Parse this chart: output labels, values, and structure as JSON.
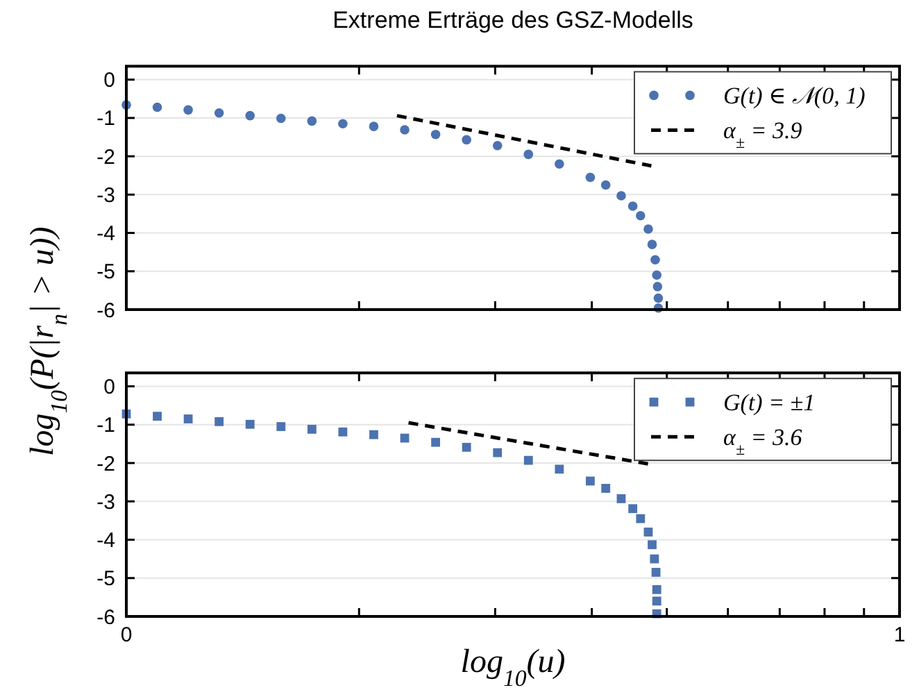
{
  "chart_data": [
    {
      "type": "scatter",
      "title": "Extreme Erträge des GSZ-Modells",
      "ylabel": "log$_{10}$(P(|r$_{n}$| > u))",
      "xlim": [
        0,
        1
      ],
      "xticks": [
        {
          "value": 0,
          "label": null
        },
        {
          "value": 0.301,
          "label": null
        },
        {
          "value": 0.477,
          "label": null
        },
        {
          "value": 0.602,
          "label": null
        },
        {
          "value": 0.699,
          "label": null
        },
        {
          "value": 0.778,
          "label": null
        },
        {
          "value": 0.845,
          "label": null
        },
        {
          "value": 0.903,
          "label": null
        },
        {
          "value": 0.954,
          "label": null
        },
        {
          "value": 1,
          "label": null
        }
      ],
      "ylim": [
        -6,
        0.35
      ],
      "yticks": [
        0,
        -1,
        -2,
        -3,
        -4,
        -5,
        -6
      ],
      "grid": "y",
      "legend": "top right",
      "tick_labels": "y",
      "series": [
        {
          "name": "G(t) ∈ 𝒩(0, 1)",
          "type": "scatter",
          "marker": "circle",
          "color": "#4c72b0",
          "x": [
            0,
            0.04,
            0.08,
            0.12,
            0.16,
            0.2,
            0.24,
            0.28,
            0.32,
            0.36,
            0.4,
            0.44,
            0.48,
            0.52,
            0.56,
            0.6,
            0.62,
            0.64,
            0.655,
            0.665,
            0.675,
            0.68,
            0.684,
            0.686,
            0.687,
            0.688,
            0.688
          ],
          "values": [
            -0.66,
            -0.72,
            -0.79,
            -0.87,
            -0.94,
            -1.01,
            -1.08,
            -1.15,
            -1.22,
            -1.31,
            -1.43,
            -1.57,
            -1.72,
            -1.95,
            -2.2,
            -2.55,
            -2.75,
            -3.03,
            -3.3,
            -3.55,
            -3.9,
            -4.3,
            -4.7,
            -5.1,
            -5.4,
            -5.7,
            -5.96
          ]
        },
        {
          "name": "α$_{±}$ = 3.9",
          "type": "line",
          "line_style": "dashed",
          "color": "#000000",
          "x": [
            0.35,
            0.679
          ],
          "values": [
            -0.94,
            -2.25
          ]
        }
      ]
    },
    {
      "type": "scatter",
      "xlabel": "log$_{10}$(u)",
      "xlim": [
        0,
        1
      ],
      "xticks": [
        {
          "value": 0,
          "label": "0"
        },
        {
          "value": 0.301,
          "label": null
        },
        {
          "value": 0.477,
          "label": null
        },
        {
          "value": 0.602,
          "label": null
        },
        {
          "value": 0.699,
          "label": null
        },
        {
          "value": 0.778,
          "label": null
        },
        {
          "value": 0.845,
          "label": null
        },
        {
          "value": 0.903,
          "label": null
        },
        {
          "value": 0.954,
          "label": null
        },
        {
          "value": 1,
          "label": "1"
        }
      ],
      "ylim": [
        -6,
        0.35
      ],
      "yticks": [
        0,
        -1,
        -2,
        -3,
        -4,
        -5,
        -6
      ],
      "grid": "y",
      "legend": "top right",
      "series": [
        {
          "name": "G(t) = ±1",
          "type": "scatter",
          "marker": "square",
          "color": "#4c72b0",
          "x": [
            0,
            0.04,
            0.08,
            0.12,
            0.16,
            0.2,
            0.24,
            0.28,
            0.32,
            0.36,
            0.4,
            0.44,
            0.48,
            0.52,
            0.56,
            0.6,
            0.62,
            0.64,
            0.655,
            0.665,
            0.675,
            0.68,
            0.683,
            0.685,
            0.686,
            0.686,
            0.686
          ],
          "values": [
            -0.72,
            -0.78,
            -0.85,
            -0.92,
            -0.99,
            -1.05,
            -1.12,
            -1.19,
            -1.26,
            -1.35,
            -1.46,
            -1.59,
            -1.73,
            -1.93,
            -2.16,
            -2.47,
            -2.66,
            -2.93,
            -3.19,
            -3.45,
            -3.8,
            -4.13,
            -4.5,
            -4.85,
            -5.3,
            -5.6,
            -5.93
          ]
        },
        {
          "name": "α$_{±}$ = 3.6",
          "type": "line",
          "line_style": "dashed",
          "color": "#000000",
          "x": [
            0.365,
            0.683
          ],
          "values": [
            -0.95,
            -2.05
          ]
        }
      ]
    }
  ]
}
